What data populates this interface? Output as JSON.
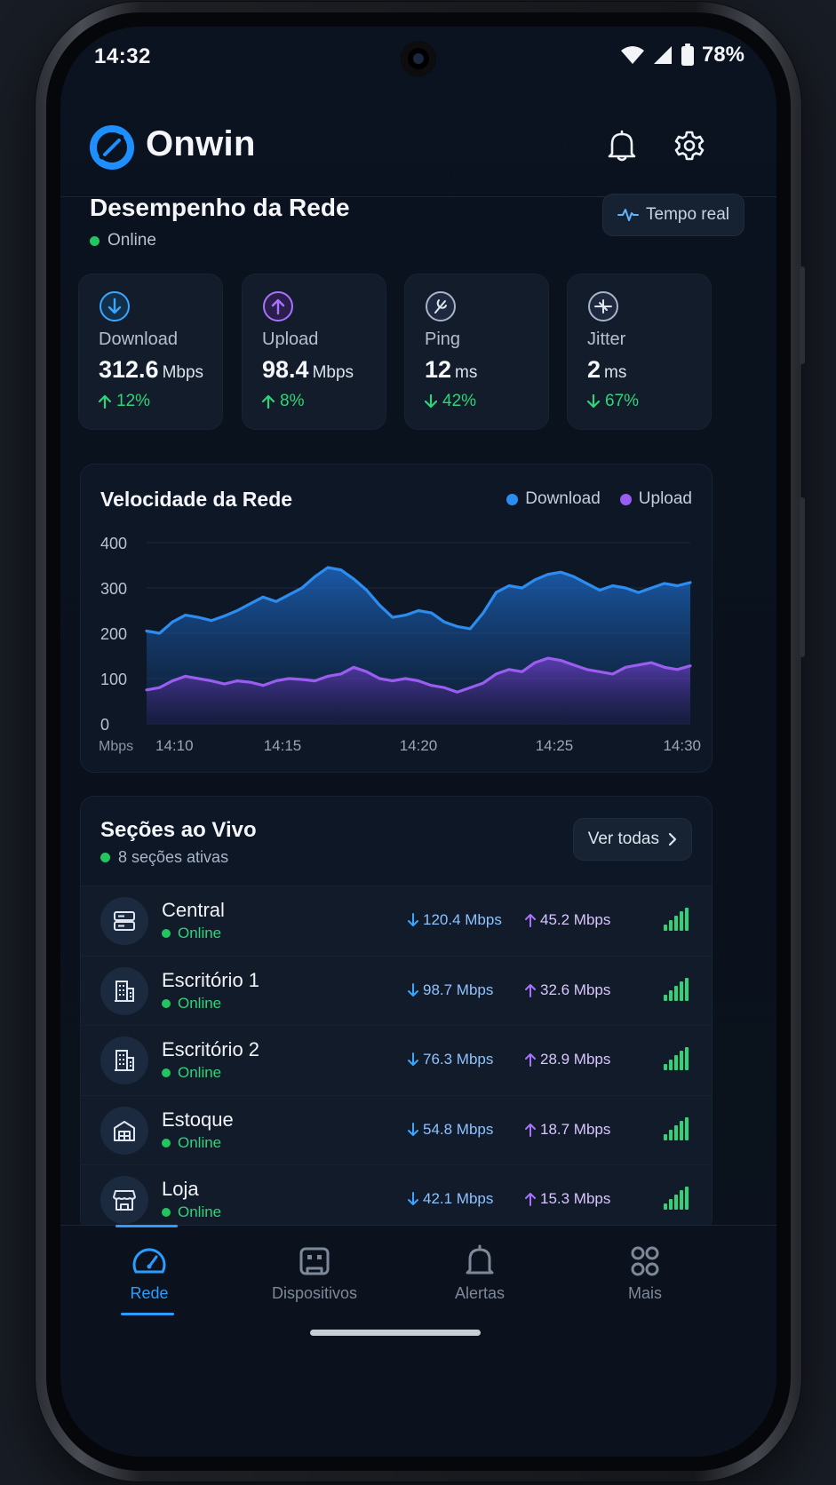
{
  "status_bar": {
    "time": "14:32",
    "battery": "78%"
  },
  "app": {
    "name": "Onwin"
  },
  "performance": {
    "title": "Desempenho da Rede",
    "status": "Online",
    "realtime_label": "Tempo real",
    "stats": [
      {
        "label": "Download",
        "value": "312.6",
        "unit": "Mbps",
        "change": "12%",
        "direction": "up",
        "icon": "download-icon",
        "color": "#3aa7ff"
      },
      {
        "label": "Upload",
        "value": "98.4",
        "unit": "Mbps",
        "change": "8%",
        "direction": "up",
        "icon": "upload-icon",
        "color": "#a872ff"
      },
      {
        "label": "Ping",
        "value": "12",
        "unit": "ms",
        "change": "42%",
        "direction": "down",
        "icon": "ping-icon",
        "color": "#a9b4c8"
      },
      {
        "label": "Jitter",
        "value": "2",
        "unit": "ms",
        "change": "67%",
        "direction": "down",
        "icon": "jitter-icon",
        "color": "#a9b4c8"
      }
    ]
  },
  "chart_data": {
    "type": "area",
    "title": "Velocidade da Rede",
    "unit_label": "Mbps",
    "x_ticks": [
      "14:10",
      "14:15",
      "14:20",
      "14:25",
      "14:30"
    ],
    "ylim": [
      0,
      400
    ],
    "y_ticks": [
      0,
      100,
      200,
      300,
      400
    ],
    "grid": true,
    "legend_position": "top-right",
    "x": [
      0,
      0.5,
      1,
      1.5,
      2,
      2.5,
      3,
      3.5,
      4,
      4.5,
      5,
      5.5,
      6,
      6.5,
      7,
      7.5,
      8,
      8.5,
      9,
      9.5,
      10,
      10.5,
      11,
      11.5,
      12,
      12.5,
      13,
      13.5,
      14,
      14.5,
      15,
      15.5,
      16,
      16.5,
      17,
      17.5,
      18,
      18.5,
      19,
      19.5,
      20,
      20.5,
      21
    ],
    "series": [
      {
        "name": "Download",
        "color": "#2d8cf0",
        "values": [
          205,
          200,
          225,
          240,
          235,
          228,
          238,
          250,
          265,
          280,
          270,
          285,
          300,
          325,
          345,
          340,
          320,
          295,
          262,
          235,
          240,
          250,
          245,
          225,
          215,
          210,
          245,
          290,
          305,
          300,
          318,
          330,
          335,
          325,
          310,
          295,
          305,
          300,
          290,
          300,
          310,
          305,
          312
        ]
      },
      {
        "name": "Upload",
        "color": "#9b5cf0",
        "values": [
          75,
          80,
          95,
          105,
          100,
          95,
          88,
          95,
          92,
          85,
          95,
          100,
          98,
          95,
          105,
          110,
          125,
          115,
          100,
          95,
          100,
          95,
          85,
          80,
          70,
          80,
          90,
          110,
          120,
          115,
          135,
          145,
          140,
          130,
          120,
          115,
          110,
          125,
          130,
          135,
          125,
          120,
          128
        ]
      }
    ]
  },
  "sections": {
    "title": "Seções ao Vivo",
    "subtitle": "8 seções ativas",
    "see_all": "Ver todas",
    "items": [
      {
        "name": "Central",
        "status": "Online",
        "download": "120.4 Mbps",
        "upload": "45.2 Mbps",
        "icon": "server-icon"
      },
      {
        "name": "Escritório 1",
        "status": "Online",
        "download": "98.7 Mbps",
        "upload": "32.6 Mbps",
        "icon": "building-icon"
      },
      {
        "name": "Escritório 2",
        "status": "Online",
        "download": "76.3 Mbps",
        "upload": "28.9 Mbps",
        "icon": "building-icon"
      },
      {
        "name": "Estoque",
        "status": "Online",
        "download": "54.8 Mbps",
        "upload": "18.7 Mbps",
        "icon": "warehouse-icon"
      },
      {
        "name": "Loja",
        "status": "Online",
        "download": "42.1 Mbps",
        "upload": "15.3 Mbps",
        "icon": "store-icon"
      }
    ]
  },
  "nav": {
    "items": [
      {
        "label": "Rede",
        "icon": "speedometer-icon",
        "active": true
      },
      {
        "label": "Dispositivos",
        "icon": "devices-icon",
        "active": false
      },
      {
        "label": "Alertas",
        "icon": "bell-icon",
        "active": false
      },
      {
        "label": "Mais",
        "icon": "grid-icon",
        "active": false
      }
    ]
  },
  "colors": {
    "accent": "#2d9cff",
    "online": "#22c55e",
    "upload": "#9b5cf0",
    "download": "#2d8cf0"
  }
}
